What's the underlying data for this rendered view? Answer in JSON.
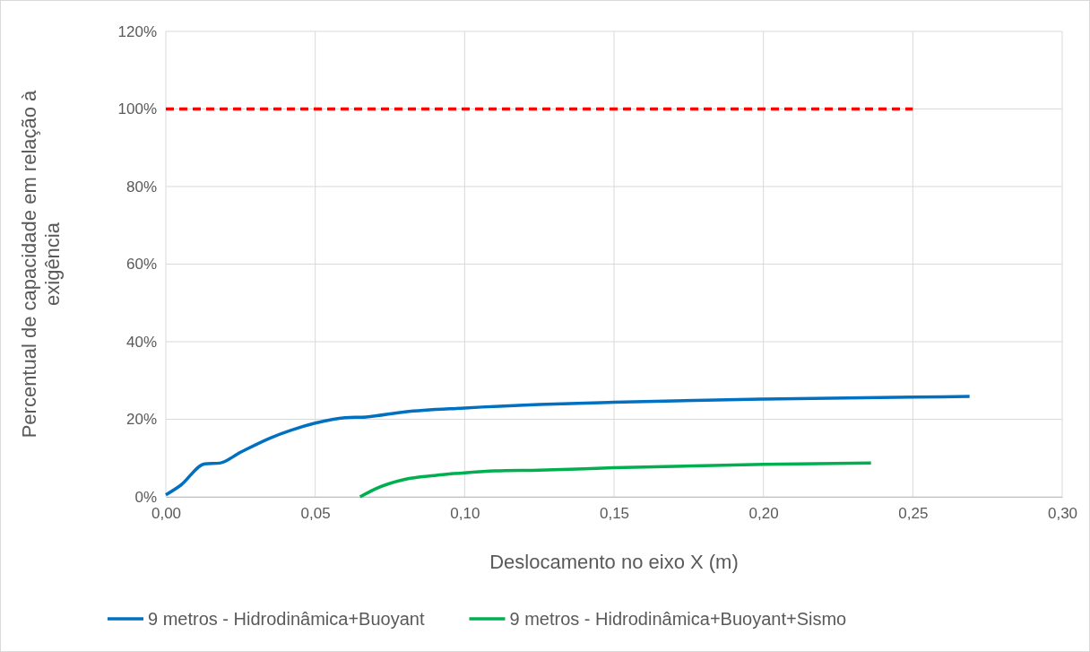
{
  "chart_data": {
    "type": "line",
    "xlabel": "Deslocamento no eixo X (m)",
    "ylabel": "Percentual de capacidade em relação à exigência",
    "xlim": [
      0,
      0.3
    ],
    "xticks": [
      {
        "value": 0,
        "label": "0,00"
      },
      {
        "value": 0.05,
        "label": "0,05"
      },
      {
        "value": 0.1,
        "label": "0,10"
      },
      {
        "value": 0.15,
        "label": "0,15"
      },
      {
        "value": 0.2,
        "label": "0,20"
      },
      {
        "value": 0.25,
        "label": "0,25"
      },
      {
        "value": 0.3,
        "label": "0,30"
      }
    ],
    "ylim": [
      0,
      120
    ],
    "yticks": [
      {
        "value": 0,
        "label": "0%"
      },
      {
        "value": 20,
        "label": "20%"
      },
      {
        "value": 40,
        "label": "40%"
      },
      {
        "value": 60,
        "label": "60%"
      },
      {
        "value": 80,
        "label": "80%"
      },
      {
        "value": 100,
        "label": "100%"
      },
      {
        "value": 120,
        "label": "120%"
      }
    ],
    "grid": true,
    "legend": "bottom",
    "marker": "none",
    "series": [
      {
        "name": "9 metros - Hidrodinâmica+Buoyant",
        "color": "#0070c0",
        "x": [
          0,
          0.005,
          0.013,
          0.018,
          0.025,
          0.035,
          0.042,
          0.05,
          0.06,
          0.067,
          0.08,
          0.1,
          0.125,
          0.15,
          0.2,
          0.25,
          0.269
        ],
        "values": [
          0.5,
          3,
          8.5,
          8.7,
          11.5,
          15.2,
          17.2,
          19,
          20.4,
          20.6,
          21.9,
          22.9,
          23.8,
          24.4,
          25.2,
          25.7,
          25.9
        ]
      },
      {
        "name": "9 metros - Hidrodinâmica+Buoyant+Sismo",
        "color": "#00b050",
        "x": [
          0.065,
          0.07,
          0.08,
          0.09,
          0.1,
          0.11,
          0.125,
          0.15,
          0.2,
          0.236
        ],
        "values": [
          0,
          2,
          4.5,
          5.5,
          6.2,
          6.7,
          6.9,
          7.5,
          8.4,
          8.7
        ]
      },
      {
        "color": "#ff0000",
        "line_style": "dashed",
        "x": [
          0,
          0.25
        ],
        "values": [
          100,
          100
        ]
      }
    ]
  }
}
